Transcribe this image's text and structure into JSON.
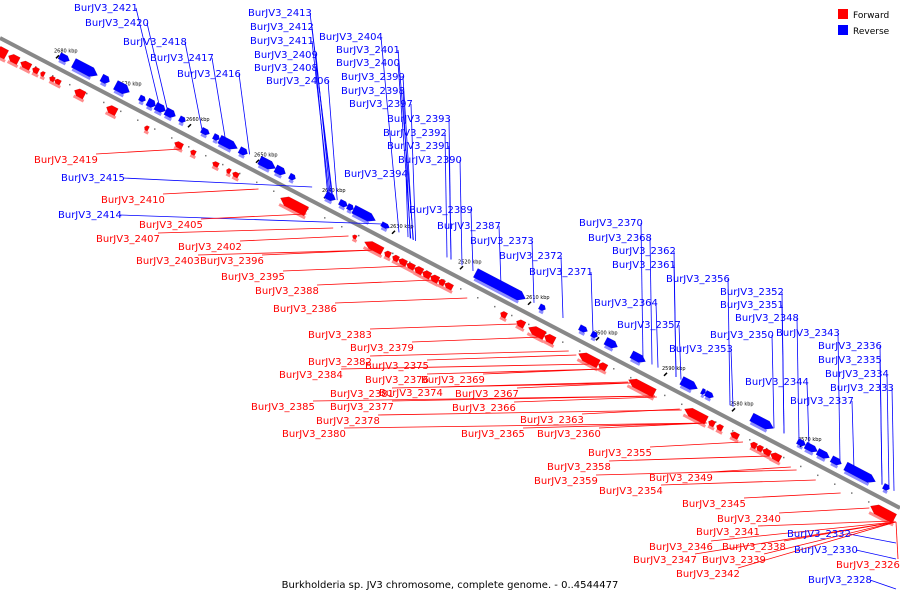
{
  "title": "Burkholderia sp. JV3 chromosome, complete genome. - 0..4544477",
  "legend": [
    {
      "label": "Forward",
      "color": "#ff0000"
    },
    {
      "label": "Reverse",
      "color": "#0000ff"
    }
  ],
  "colors": {
    "forward": "#ff0000",
    "reverse": "#0000ff",
    "backbone": "#888888"
  },
  "ticks": [
    "2680 kbp",
    "2670 kbp",
    "2660 kbp",
    "2650 kbp",
    "2640 kbp",
    "2630 kbp",
    "2620 kbp",
    "2610 kbp",
    "2600 kbp",
    "2590 kbp",
    "2580 kbp",
    "2570 kbp"
  ],
  "genes": [
    {
      "name": "BurJV3_2421",
      "strand": "reverse"
    },
    {
      "name": "BurJV3_2420",
      "strand": "reverse"
    },
    {
      "name": "BurJV3_2418",
      "strand": "reverse"
    },
    {
      "name": "BurJV3_2417",
      "strand": "reverse"
    },
    {
      "name": "BurJV3_2416",
      "strand": "reverse"
    },
    {
      "name": "BurJV3_2413",
      "strand": "reverse"
    },
    {
      "name": "BurJV3_2412",
      "strand": "reverse"
    },
    {
      "name": "BurJV3_2411",
      "strand": "reverse"
    },
    {
      "name": "BurJV3_2409",
      "strand": "reverse"
    },
    {
      "name": "BurJV3_2408",
      "strand": "reverse"
    },
    {
      "name": "BurJV3_2406",
      "strand": "reverse"
    },
    {
      "name": "BurJV3_2404",
      "strand": "reverse"
    },
    {
      "name": "BurJV3_2401",
      "strand": "reverse"
    },
    {
      "name": "BurJV3_2400",
      "strand": "reverse"
    },
    {
      "name": "BurJV3_2399",
      "strand": "reverse"
    },
    {
      "name": "BurJV3_2398",
      "strand": "reverse"
    },
    {
      "name": "BurJV3_2397",
      "strand": "reverse"
    },
    {
      "name": "BurJV3_2393",
      "strand": "reverse"
    },
    {
      "name": "BurJV3_2392",
      "strand": "reverse"
    },
    {
      "name": "BurJV3_2391",
      "strand": "reverse"
    },
    {
      "name": "BurJV3_2390",
      "strand": "reverse"
    },
    {
      "name": "BurJV3_2394",
      "strand": "reverse"
    },
    {
      "name": "BurJV3_2389",
      "strand": "reverse"
    },
    {
      "name": "BurJV3_2387",
      "strand": "reverse"
    },
    {
      "name": "BurJV3_2373",
      "strand": "reverse"
    },
    {
      "name": "BurJV3_2372",
      "strand": "reverse"
    },
    {
      "name": "BurJV3_2371",
      "strand": "reverse"
    },
    {
      "name": "BurJV3_2370",
      "strand": "reverse"
    },
    {
      "name": "BurJV3_2368",
      "strand": "reverse"
    },
    {
      "name": "BurJV3_2362",
      "strand": "reverse"
    },
    {
      "name": "BurJV3_2361",
      "strand": "reverse"
    },
    {
      "name": "BurJV3_2364",
      "strand": "reverse"
    },
    {
      "name": "BurJV3_2357",
      "strand": "reverse"
    },
    {
      "name": "BurJV3_2356",
      "strand": "reverse"
    },
    {
      "name": "BurJV3_2353",
      "strand": "reverse"
    },
    {
      "name": "BurJV3_2352",
      "strand": "reverse"
    },
    {
      "name": "BurJV3_2351",
      "strand": "reverse"
    },
    {
      "name": "BurJV3_2348",
      "strand": "reverse"
    },
    {
      "name": "BurJV3_2350",
      "strand": "reverse"
    },
    {
      "name": "BurJV3_2343",
      "strand": "reverse"
    },
    {
      "name": "BurJV3_2344",
      "strand": "reverse"
    },
    {
      "name": "BurJV3_2336",
      "strand": "reverse"
    },
    {
      "name": "BurJV3_2335",
      "strand": "reverse"
    },
    {
      "name": "BurJV3_2334",
      "strand": "reverse"
    },
    {
      "name": "BurJV3_2333",
      "strand": "reverse"
    },
    {
      "name": "BurJV3_2337",
      "strand": "reverse"
    },
    {
      "name": "BurJV3_2332",
      "strand": "reverse"
    },
    {
      "name": "BurJV3_2330",
      "strand": "reverse"
    },
    {
      "name": "BurJV3_2328",
      "strand": "reverse"
    },
    {
      "name": "BurJV3_2415",
      "strand": "reverse"
    },
    {
      "name": "BurJV3_2414",
      "strand": "reverse"
    },
    {
      "name": "BurJV3_2419",
      "strand": "forward"
    },
    {
      "name": "BurJV3_2410",
      "strand": "forward"
    },
    {
      "name": "BurJV3_2405",
      "strand": "forward"
    },
    {
      "name": "BurJV3_2407",
      "strand": "forward"
    },
    {
      "name": "BurJV3_2402",
      "strand": "forward"
    },
    {
      "name": "BurJV3_2403",
      "strand": "forward"
    },
    {
      "name": "BurJV3_2396",
      "strand": "forward"
    },
    {
      "name": "BurJV3_2395",
      "strand": "forward"
    },
    {
      "name": "BurJV3_2388",
      "strand": "forward"
    },
    {
      "name": "BurJV3_2386",
      "strand": "forward"
    },
    {
      "name": "BurJV3_2383",
      "strand": "forward"
    },
    {
      "name": "BurJV3_2379",
      "strand": "forward"
    },
    {
      "name": "BurJV3_2382",
      "strand": "forward"
    },
    {
      "name": "BurJV3_2375",
      "strand": "forward"
    },
    {
      "name": "BurJV3_2384",
      "strand": "forward"
    },
    {
      "name": "BurJV3_2376",
      "strand": "forward"
    },
    {
      "name": "BurJV3_2369",
      "strand": "forward"
    },
    {
      "name": "BurJV3_2381",
      "strand": "forward"
    },
    {
      "name": "BurJV3_2374",
      "strand": "forward"
    },
    {
      "name": "BurJV3_2367",
      "strand": "forward"
    },
    {
      "name": "BurJV3_2385",
      "strand": "forward"
    },
    {
      "name": "BurJV3_2377",
      "strand": "forward"
    },
    {
      "name": "BurJV3_2366",
      "strand": "forward"
    },
    {
      "name": "BurJV3_2378",
      "strand": "forward"
    },
    {
      "name": "BurJV3_2363",
      "strand": "forward"
    },
    {
      "name": "BurJV3_2380",
      "strand": "forward"
    },
    {
      "name": "BurJV3_2365",
      "strand": "forward"
    },
    {
      "name": "BurJV3_2360",
      "strand": "forward"
    },
    {
      "name": "BurJV3_2355",
      "strand": "forward"
    },
    {
      "name": "BurJV3_2358",
      "strand": "forward"
    },
    {
      "name": "BurJV3_2359",
      "strand": "forward"
    },
    {
      "name": "BurJV3_2354",
      "strand": "forward"
    },
    {
      "name": "BurJV3_2349",
      "strand": "forward"
    },
    {
      "name": "BurJV3_2345",
      "strand": "forward"
    },
    {
      "name": "BurJV3_2340",
      "strand": "forward"
    },
    {
      "name": "BurJV3_2341",
      "strand": "forward"
    },
    {
      "name": "BurJV3_2346",
      "strand": "forward"
    },
    {
      "name": "BurJV3_2338",
      "strand": "forward"
    },
    {
      "name": "BurJV3_2347",
      "strand": "forward"
    },
    {
      "name": "BurJV3_2339",
      "strand": "forward"
    },
    {
      "name": "BurJV3_2342",
      "strand": "forward"
    },
    {
      "name": "BurJV3_2326",
      "strand": "forward"
    }
  ]
}
